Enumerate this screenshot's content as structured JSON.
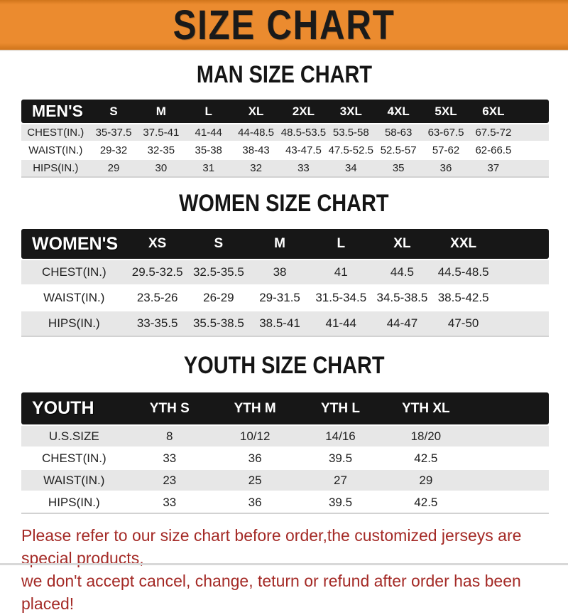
{
  "banner": {
    "title": "SIZE CHART"
  },
  "sections": [
    {
      "id": "men",
      "title": "MAN SIZE CHART",
      "band_label": "MEN'S",
      "columns": [
        "S",
        "M",
        "L",
        "XL",
        "2XL",
        "3XL",
        "4XL",
        "5XL",
        "6XL"
      ],
      "rows": [
        {
          "label": "CHEST(IN.)",
          "values": [
            "35-37.5",
            "37.5-41",
            "41-44",
            "44-48.5",
            "48.5-53.5",
            "53.5-58",
            "58-63",
            "63-67.5",
            "67.5-72"
          ]
        },
        {
          "label": "WAIST(IN.)",
          "values": [
            "29-32",
            "32-35",
            "35-38",
            "38-43",
            "43-47.5",
            "47.5-52.5",
            "52.5-57",
            "57-62",
            "62-66.5"
          ]
        },
        {
          "label": "HIPS(IN.)",
          "values": [
            "29",
            "30",
            "31",
            "32",
            "33",
            "34",
            "35",
            "36",
            "37"
          ]
        }
      ]
    },
    {
      "id": "women",
      "title": "WOMEN SIZE CHART",
      "band_label": "WOMEN'S",
      "columns": [
        "XS",
        "S",
        "M",
        "L",
        "XL",
        "XXL"
      ],
      "rows": [
        {
          "label": "CHEST(IN.)",
          "values": [
            "29.5-32.5",
            "32.5-35.5",
            "38",
            "41",
            "44.5",
            "44.5-48.5"
          ]
        },
        {
          "label": "WAIST(IN.)",
          "values": [
            "23.5-26",
            "26-29",
            "29-31.5",
            "31.5-34.5",
            "34.5-38.5",
            "38.5-42.5"
          ]
        },
        {
          "label": "HIPS(IN.)",
          "values": [
            "33-35.5",
            "35.5-38.5",
            "38.5-41",
            "41-44",
            "44-47",
            "47-50"
          ]
        }
      ]
    },
    {
      "id": "youth",
      "title": "YOUTH SIZE CHART",
      "band_label": "YOUTH",
      "columns": [
        "YTH S",
        "YTH M",
        "YTH L",
        "YTH XL"
      ],
      "rows": [
        {
          "label": "U.S.SIZE",
          "values": [
            "8",
            "10/12",
            "14/16",
            "18/20"
          ]
        },
        {
          "label": "CHEST(IN.)",
          "values": [
            "33",
            "36",
            "39.5",
            "42.5"
          ]
        },
        {
          "label": "WAIST(IN.)",
          "values": [
            "23",
            "25",
            "27",
            "29"
          ]
        },
        {
          "label": "HIPS(IN.)",
          "values": [
            "33",
            "36",
            "39.5",
            "42.5"
          ]
        }
      ]
    }
  ],
  "footer": {
    "line1": "Please refer to our size chart before order,the customized jerseys are special products,",
    "line2": "we don't accept cancel, change, teturn or refund after order has been placed!"
  },
  "colors": {
    "banner_bg": "#EB8B2F",
    "banner_text": "#1A1A1A",
    "band_bg": "#171717",
    "band_text": "#FFFFFF",
    "row_alt_bg": "#E7E7E7",
    "row_bg": "#FFFFFF",
    "cell_text": "#1F1F1F",
    "disclaimer_red": "#A42A26",
    "bottom_rule_gray": "#D8D8D8"
  }
}
